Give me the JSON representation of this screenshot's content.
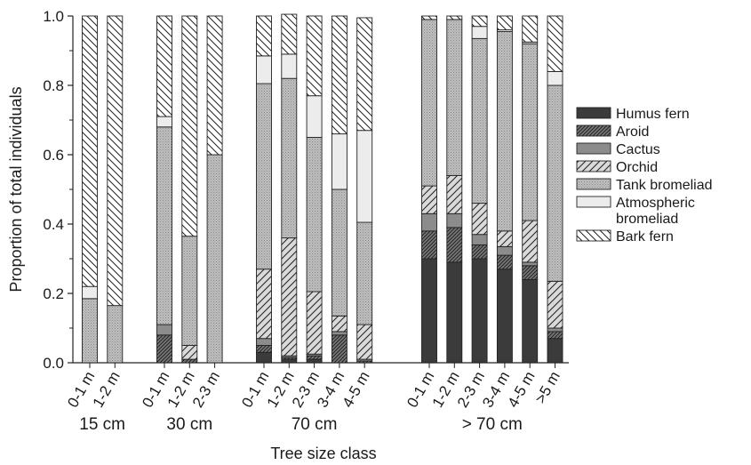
{
  "chart_data": {
    "type": "bar",
    "stacked": true,
    "xlabel": "Tree size class",
    "ylabel": "Proportion of total individuals",
    "ylim": [
      0,
      1
    ],
    "yticks": [
      "0.0",
      "0.2",
      "0.4",
      "0.6",
      "0.8",
      "1.0"
    ],
    "legend_position": "right",
    "groups": [
      {
        "label": "15 cm",
        "categories": [
          "0-1 m",
          "1-2 m"
        ]
      },
      {
        "label": "30 cm",
        "categories": [
          "0-1 m",
          "1-2 m",
          "2-3 m"
        ]
      },
      {
        "label": "70 cm",
        "categories": [
          "0-1 m",
          "1-2 m",
          "2-3 m",
          "3-4 m",
          "4-5 m"
        ]
      },
      {
        "label": "> 70 cm",
        "categories": [
          "0-1 m",
          "1-2 m",
          "2-3 m",
          "3-4 m",
          "4-5 m",
          ">5 m"
        ]
      }
    ],
    "series": [
      {
        "name": "Humus fern",
        "pattern": "solid-dark",
        "values": [
          0,
          0,
          0,
          0,
          0,
          0.03,
          0.01,
          0.01,
          0,
          0,
          0.3,
          0.29,
          0.3,
          0.27,
          0.24,
          0.07
        ]
      },
      {
        "name": "Aroid",
        "pattern": "dense-hatch",
        "values": [
          0,
          0,
          0.08,
          0.01,
          0,
          0.02,
          0.005,
          0.01,
          0.08,
          0.005,
          0.08,
          0.1,
          0.04,
          0.04,
          0.04,
          0.02
        ]
      },
      {
        "name": "Cactus",
        "pattern": "solid-mid",
        "values": [
          0,
          0,
          0.03,
          0,
          0,
          0.02,
          0.005,
          0.005,
          0.01,
          0.005,
          0.05,
          0.04,
          0.03,
          0.025,
          0.01,
          0.01
        ]
      },
      {
        "name": "Orchid",
        "pattern": "forward-hatch",
        "values": [
          0,
          0,
          0,
          0.04,
          0,
          0.2,
          0.34,
          0.18,
          0.045,
          0.1,
          0.08,
          0.11,
          0.09,
          0.045,
          0.12,
          0.135
        ]
      },
      {
        "name": "Tank bromeliad",
        "pattern": "stipple",
        "values": [
          0.185,
          0.165,
          0.57,
          0.315,
          0.6,
          0.535,
          0.46,
          0.445,
          0.365,
          0.295,
          0.48,
          0.45,
          0.475,
          0.575,
          0.51,
          0.565
        ]
      },
      {
        "name": "Atmospheric bromeliad",
        "pattern": "light",
        "values": [
          0.035,
          0,
          0.03,
          0,
          0,
          0.08,
          0.07,
          0.12,
          0.16,
          0.265,
          0,
          0,
          0.035,
          0.005,
          0.005,
          0.04
        ]
      },
      {
        "name": "Bark fern",
        "pattern": "back-hatch",
        "values": [
          0.78,
          0.835,
          0.29,
          0.635,
          0.4,
          0.115,
          0.115,
          0.23,
          0.34,
          0.325,
          0.01,
          0.01,
          0.03,
          0.04,
          0.075,
          0.16
        ]
      }
    ]
  },
  "legend": {
    "items": [
      {
        "lines": [
          "Humus fern"
        ],
        "pattern": "solid-dark"
      },
      {
        "lines": [
          "Aroid"
        ],
        "pattern": "dense-hatch"
      },
      {
        "lines": [
          "Cactus"
        ],
        "pattern": "solid-mid"
      },
      {
        "lines": [
          "Orchid"
        ],
        "pattern": "forward-hatch"
      },
      {
        "lines": [
          "Tank bromeliad"
        ],
        "pattern": "stipple"
      },
      {
        "lines": [
          "Atmospheric",
          "bromeliad"
        ],
        "pattern": "light"
      },
      {
        "lines": [
          "Bark fern"
        ],
        "pattern": "back-hatch"
      }
    ]
  }
}
